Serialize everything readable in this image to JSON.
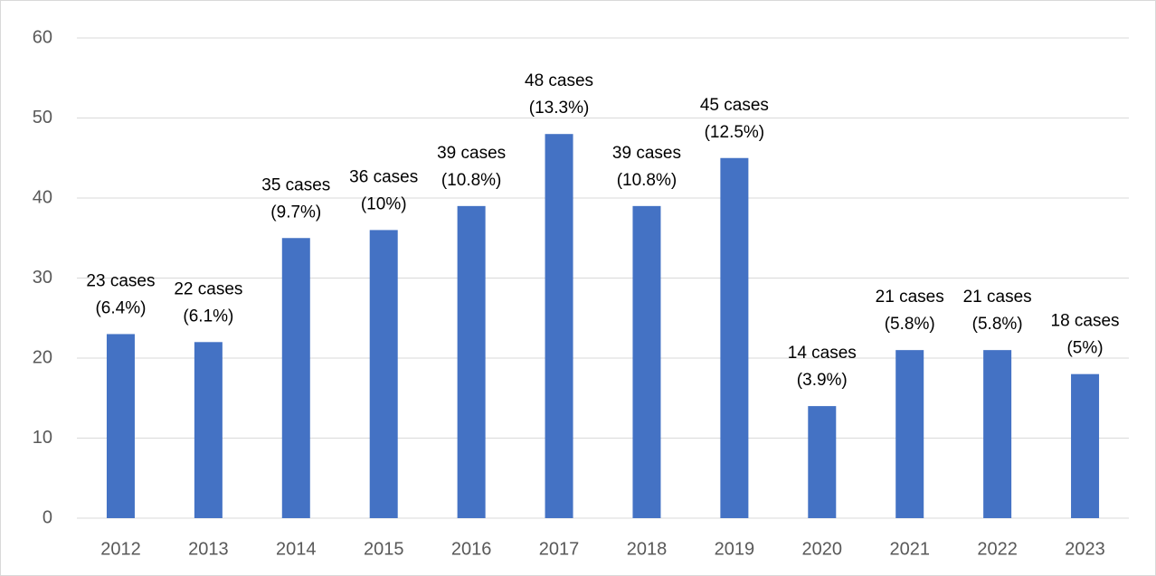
{
  "chart_data": {
    "type": "bar",
    "categories": [
      "2012",
      "2013",
      "2014",
      "2015",
      "2016",
      "2017",
      "2018",
      "2019",
      "2020",
      "2021",
      "2022",
      "2023"
    ],
    "values": [
      23,
      22,
      35,
      36,
      39,
      48,
      39,
      45,
      14,
      21,
      21,
      18
    ],
    "value_labels": [
      [
        "23 cases",
        "(6.4%)"
      ],
      [
        "22 cases",
        "(6.1%)"
      ],
      [
        "35 cases",
        "(9.7%)"
      ],
      [
        "36 cases",
        "(10%)"
      ],
      [
        "39 cases",
        "(10.8%)"
      ],
      [
        "48 cases",
        "(13.3%)"
      ],
      [
        "39 cases",
        "(10.8%)"
      ],
      [
        "45 cases",
        "(12.5%)"
      ],
      [
        "14 cases",
        "(3.9%)"
      ],
      [
        "21 cases",
        "(5.8%)"
      ],
      [
        "21 cases",
        "(5.8%)"
      ],
      [
        "18 cases",
        "(5%)"
      ]
    ],
    "color": "#4472c4",
    "ylim": [
      0,
      60
    ],
    "yticks": [
      0,
      10,
      20,
      30,
      40,
      50,
      60
    ],
    "grid": true
  }
}
